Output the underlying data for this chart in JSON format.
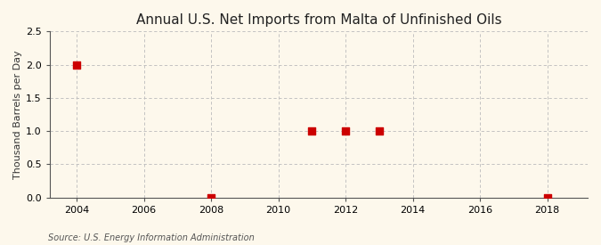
{
  "title": "Annual U.S. Net Imports from Malta of Unfinished Oils",
  "ylabel": "Thousand Barrels per Day",
  "source": "Source: U.S. Energy Information Administration",
  "background_color": "#fdf8ec",
  "plot_bg_color": "#fdf8ec",
  "data_x": [
    2004,
    2008,
    2011,
    2012,
    2013,
    2018
  ],
  "data_y": [
    2.0,
    0.0,
    1.0,
    1.0,
    1.0,
    0.0
  ],
  "marker_color": "#cc0000",
  "marker_style": "s",
  "marker_size": 3.5,
  "xlim": [
    2003.2,
    2019.2
  ],
  "ylim": [
    0.0,
    2.5
  ],
  "yticks": [
    0.0,
    0.5,
    1.0,
    1.5,
    2.0,
    2.5
  ],
  "xticks": [
    2004,
    2006,
    2008,
    2010,
    2012,
    2014,
    2016,
    2018
  ],
  "grid_color": "#bbbbbb",
  "grid_linestyle": "--",
  "grid_linewidth": 0.6,
  "title_fontsize": 11,
  "axis_label_fontsize": 8,
  "tick_fontsize": 8,
  "source_fontsize": 7
}
